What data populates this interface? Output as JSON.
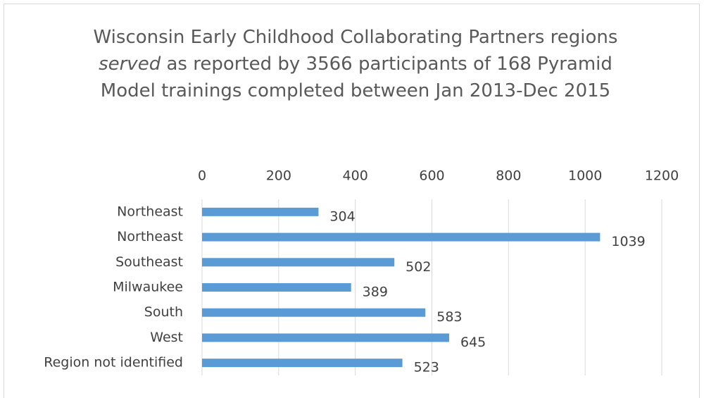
{
  "chart_data": {
    "type": "bar",
    "orientation": "horizontal",
    "title": [
      "Wisconsin Early Childhood Collaborating Partners regions ",
      "served",
      " as reported by 3566 participants of 168 Pyramid Model trainings completed between Jan 2013-Dec 2015"
    ],
    "title_italic": [
      false,
      true,
      false
    ],
    "categories": [
      "Northeast",
      "Northeast",
      "Southeast",
      "Milwaukee",
      "South",
      "West",
      "Region not identified"
    ],
    "values": [
      304,
      1039,
      502,
      389,
      583,
      645,
      523
    ],
    "color": "#5b9bd5",
    "xlim": [
      0,
      1200
    ],
    "xticks": [
      0,
      200,
      400,
      600,
      800,
      1000,
      1200
    ],
    "xaxis_position": "top",
    "grid": true
  }
}
